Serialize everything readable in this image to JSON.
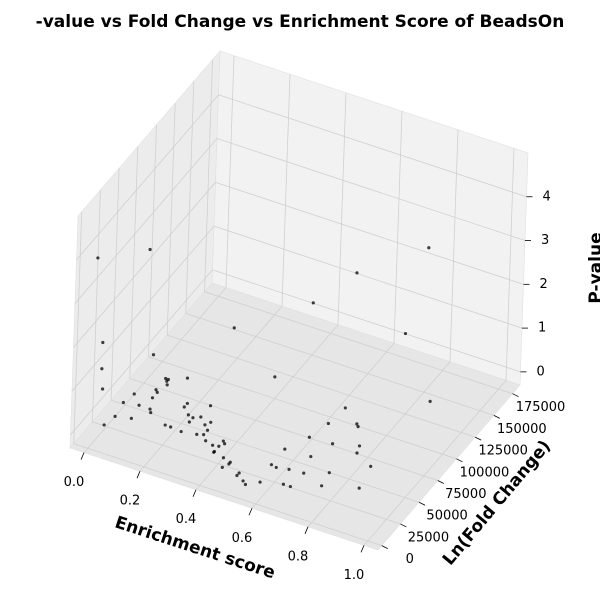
{
  "chart_data": {
    "type": "scatter3d",
    "title": "-value vs Fold Change vs Enrichment Score of BeadsOn",
    "x_label": "Enrichment score",
    "y_label": "Ln(Fold Change)",
    "z_label": "P-value",
    "color": "#000000",
    "xlim": [
      -0.05,
      1.05
    ],
    "ylim": [
      -5000,
      185000
    ],
    "zlim": [
      -0.3,
      5.0
    ],
    "xticks": [
      {
        "value": 0,
        "label": "0.0"
      },
      0.2,
      0.4,
      0.6,
      0.8,
      {
        "value": 1,
        "label": "1.0"
      }
    ],
    "yticks": [
      0,
      25000,
      50000,
      75000,
      100000,
      125000,
      150000,
      175000
    ],
    "zticks": [
      0,
      1,
      2,
      3,
      4
    ],
    "grid": true,
    "x": [
      0.05,
      0.08,
      0.1,
      0.12,
      0.15,
      0.18,
      0.2,
      0.22,
      0.25,
      0.28,
      0.3,
      0.32,
      0.35,
      0.38,
      0.4,
      0.42,
      0.45,
      0.48,
      0.5,
      0.52,
      0.1,
      0.15,
      0.2,
      0.25,
      0.3,
      0.35,
      0.4,
      0.45,
      0.12,
      0.18,
      0.22,
      0.27,
      0.33,
      0.37,
      0.43,
      0.47,
      0.14,
      0.24,
      0.34,
      0.44,
      0.02,
      0.01,
      0.03,
      0.16,
      0.26,
      0.36,
      0.46,
      0.53,
      0.55,
      0.56,
      0.6,
      0.62,
      0.65,
      0.68,
      0.7,
      0.72,
      0.75,
      0.78,
      0.8,
      0.82,
      0.63,
      0.67,
      0.71,
      0.74,
      0.77,
      0.85,
      0.6,
      0.7,
      0.8,
      0.9,
      0.8,
      0.6,
      0.5,
      0.12,
      0.0,
      0.88,
      0.9,
      0.3,
      0.5,
      0.95
    ],
    "y": [
      2000,
      5000,
      8000,
      12000,
      3000,
      15000,
      6000,
      20000,
      9000,
      4000,
      11000,
      25000,
      7000,
      14000,
      3000,
      10000,
      5000,
      8000,
      2000,
      4000,
      30000,
      35000,
      28000,
      40000,
      22000,
      18000,
      16000,
      12000,
      45000,
      38000,
      1000,
      26000,
      32000,
      20000,
      7000,
      3000,
      50000,
      42000,
      36000,
      15000,
      8000,
      12000,
      6000,
      24000,
      33000,
      27000,
      9000,
      3000,
      1000,
      500,
      20000,
      30000,
      25000,
      40000,
      35000,
      50000,
      45000,
      30000,
      60000,
      55000,
      15000,
      10000,
      22000,
      65000,
      70000,
      40000,
      5000,
      8000,
      12000,
      25000,
      150000,
      130000,
      110000,
      30000,
      5000,
      90000,
      40000,
      80000,
      60000,
      100000
    ],
    "z": [
      0.3,
      0.5,
      0.8,
      0.4,
      1.2,
      0.6,
      0.9,
      0.3,
      1.5,
      0.7,
      0.5,
      0.2,
      1.0,
      0.4,
      0.8,
      0.3,
      0.6,
      0.2,
      0.4,
      0.1,
      0.3,
      0.6,
      1.1,
      0.2,
      0.5,
      0.8,
      0.3,
      0.2,
      0.4,
      0.9,
      1.3,
      0.7,
      0.3,
      0.5,
      0.4,
      0.2,
      0.6,
      0.4,
      0.3,
      0.5,
      1.4,
      1.9,
      1.0,
      1.7,
      1.2,
      0.9,
      0.6,
      0.2,
      0.1,
      0.05,
      0.2,
      0.4,
      0.1,
      0.6,
      0.3,
      0.8,
      0.5,
      0.2,
      0.7,
      0.4,
      0.3,
      0.1,
      0.2,
      0.9,
      0.5,
      0.6,
      0.1,
      0.15,
      0.3,
      0.2,
      3,
      2.4,
      1.9,
      3.9,
      3.95,
      2.4,
      0.4,
      1.5,
      1.2,
      0.8
    ]
  }
}
